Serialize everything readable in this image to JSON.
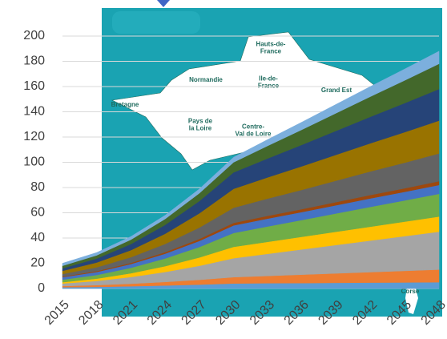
{
  "chart_data": {
    "type": "stacked_area",
    "x": [
      2015,
      2018,
      2021,
      2024,
      2027,
      2030,
      2033,
      2036,
      2039,
      2042,
      2045,
      2048
    ],
    "xlim": [
      2015,
      2048
    ],
    "xticks": [
      2015,
      2018,
      2021,
      2024,
      2027,
      2030,
      2033,
      2036,
      2039,
      2042,
      2045,
      2048
    ],
    "ylim": [
      0,
      200
    ],
    "yticks": [
      0,
      20,
      40,
      60,
      80,
      100,
      120,
      140,
      160,
      180,
      200
    ],
    "grid": true,
    "series": [
      {
        "color": "#5b9bd5",
        "values": [
          1,
          1.3,
          1.8,
          2.4,
          3.1,
          4,
          4.2,
          4.3,
          4.5,
          4.7,
          4.8,
          5
        ]
      },
      {
        "color": "#ed7d31",
        "values": [
          1,
          1.4,
          2,
          2.8,
          3.8,
          5,
          5.8,
          6.7,
          7.5,
          8.3,
          9.2,
          10
        ]
      },
      {
        "color": "#a5a5a5",
        "values": [
          2,
          3.3,
          5.3,
          7.9,
          11.1,
          15,
          17.5,
          20,
          22.5,
          25,
          27.5,
          30
        ]
      },
      {
        "color": "#ffc000",
        "values": [
          1,
          1.8,
          3,
          4.6,
          6.6,
          9,
          9.5,
          10,
          10.5,
          11,
          11.5,
          12
        ]
      },
      {
        "color": "#70ad47",
        "values": [
          2,
          2.9,
          4.3,
          6.1,
          8.3,
          11,
          12.2,
          13.3,
          14.5,
          15.7,
          16.8,
          18
        ]
      },
      {
        "color": "#4472c4",
        "values": [
          2,
          2.4,
          3,
          3.8,
          4.8,
          6,
          6.2,
          6.3,
          6.5,
          6.7,
          6.8,
          7
        ]
      },
      {
        "color": "#9e480e",
        "values": [
          0.5,
          0.7,
          0.9,
          1.2,
          1.6,
          2,
          2.2,
          2.3,
          2.5,
          2.7,
          2.8,
          3
        ]
      },
      {
        "color": "#636363",
        "values": [
          2,
          3,
          4.5,
          6.5,
          9,
          12,
          13.7,
          15.3,
          17,
          18.7,
          20.3,
          22
        ]
      },
      {
        "color": "#997300",
        "values": [
          2.5,
          3.8,
          5.6,
          8.1,
          11.3,
          15,
          16.8,
          18.7,
          20.5,
          22.3,
          24.2,
          26
        ]
      },
      {
        "color": "#264478",
        "values": [
          2,
          3.1,
          4.8,
          7,
          9.7,
          13,
          15,
          17,
          19,
          21,
          23,
          25
        ]
      },
      {
        "color": "#43682b",
        "values": [
          2,
          2.6,
          3.5,
          4.7,
          6.2,
          8,
          10,
          12,
          14,
          16,
          18,
          20
        ]
      },
      {
        "color": "#7cafdd",
        "values": [
          2,
          2.2,
          2.5,
          2.9,
          3.4,
          4,
          5,
          6,
          7,
          8,
          9,
          10
        ]
      }
    ],
    "annotations": [
      {
        "lines": [
          "Hauts-de-",
          "France"
        ]
      },
      {
        "lines": [
          "Normandie"
        ]
      },
      {
        "lines": [
          "Ile-de-",
          "France"
        ]
      },
      {
        "lines": [
          "Grand Est"
        ]
      },
      {
        "lines": [
          "Bretagne"
        ]
      },
      {
        "lines": [
          "Pays de",
          "la Loire"
        ]
      },
      {
        "lines": [
          "Centre-",
          "Val de Loire"
        ]
      },
      {
        "lines": [
          "Corse"
        ]
      }
    ]
  }
}
